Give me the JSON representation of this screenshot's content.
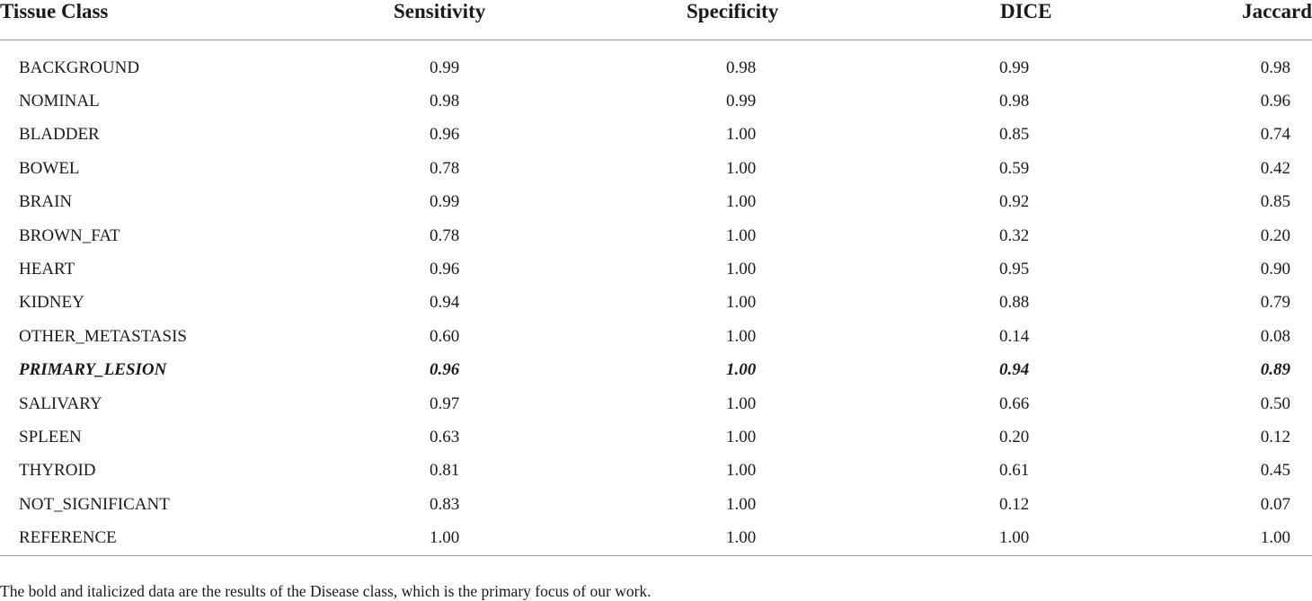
{
  "table": {
    "headers": [
      "Tissue Class",
      "Sensitivity",
      "Specificity",
      "DICE",
      "Jaccard"
    ],
    "rows": [
      {
        "name": "BACKGROUND",
        "values": [
          "0.99",
          "0.98",
          "0.99",
          "0.98"
        ],
        "emphasis": false
      },
      {
        "name": "NOMINAL",
        "values": [
          "0.98",
          "0.99",
          "0.98",
          "0.96"
        ],
        "emphasis": false
      },
      {
        "name": "BLADDER",
        "values": [
          "0.96",
          "1.00",
          "0.85",
          "0.74"
        ],
        "emphasis": false
      },
      {
        "name": "BOWEL",
        "values": [
          "0.78",
          "1.00",
          "0.59",
          "0.42"
        ],
        "emphasis": false
      },
      {
        "name": "BRAIN",
        "values": [
          "0.99",
          "1.00",
          "0.92",
          "0.85"
        ],
        "emphasis": false
      },
      {
        "name": "BROWN_FAT",
        "values": [
          "0.78",
          "1.00",
          "0.32",
          "0.20"
        ],
        "emphasis": false
      },
      {
        "name": "HEART",
        "values": [
          "0.96",
          "1.00",
          "0.95",
          "0.90"
        ],
        "emphasis": false
      },
      {
        "name": "KIDNEY",
        "values": [
          "0.94",
          "1.00",
          "0.88",
          "0.79"
        ],
        "emphasis": false
      },
      {
        "name": "OTHER_METASTASIS",
        "values": [
          "0.60",
          "1.00",
          "0.14",
          "0.08"
        ],
        "emphasis": false
      },
      {
        "name": "PRIMARY_LESION",
        "values": [
          "0.96",
          "1.00",
          "0.94",
          "0.89"
        ],
        "emphasis": true
      },
      {
        "name": "SALIVARY",
        "values": [
          "0.97",
          "1.00",
          "0.66",
          "0.50"
        ],
        "emphasis": false
      },
      {
        "name": "SPLEEN",
        "values": [
          "0.63",
          "1.00",
          "0.20",
          "0.12"
        ],
        "emphasis": false
      },
      {
        "name": "THYROID",
        "values": [
          "0.81",
          "1.00",
          "0.61",
          "0.45"
        ],
        "emphasis": false
      },
      {
        "name": "NOT_SIGNIFICANT",
        "values": [
          "0.83",
          "1.00",
          "0.12",
          "0.07"
        ],
        "emphasis": false
      },
      {
        "name": "REFERENCE",
        "values": [
          "1.00",
          "1.00",
          "1.00",
          "1.00"
        ],
        "emphasis": false
      }
    ]
  },
  "footnote": "The bold and italicized data are the results of  the Disease class, which is the primary focus of our work."
}
